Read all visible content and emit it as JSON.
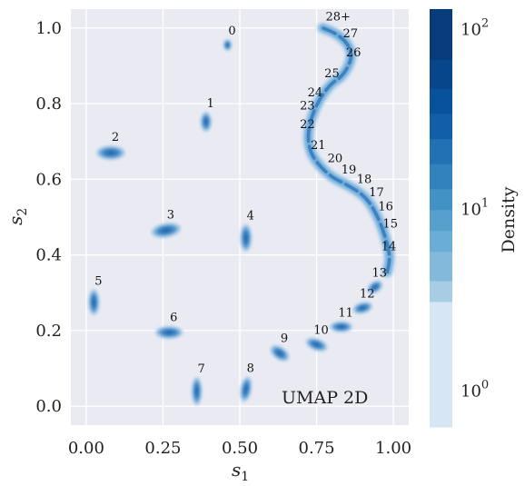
{
  "chart_data": {
    "type": "scatter",
    "annotation": "UMAP 2D",
    "xlabel": "s",
    "xlabel_sub": "1",
    "ylabel": "s",
    "ylabel_sub": "2",
    "xlim": [
      -0.05,
      1.05
    ],
    "ylim": [
      -0.05,
      1.05
    ],
    "xticks": [
      0.0,
      0.25,
      0.5,
      0.75,
      1.0
    ],
    "xtick_labels": [
      "0.00",
      "0.25",
      "0.50",
      "0.75",
      "1.00"
    ],
    "yticks": [
      0.0,
      0.2,
      0.4,
      0.6,
      0.8,
      1.0
    ],
    "ytick_labels": [
      "0.0",
      "0.2",
      "0.4",
      "0.6",
      "0.8",
      "1.0"
    ],
    "grid": true,
    "colorbar": {
      "label": "Density",
      "scale": "log",
      "tick_labels": [
        {
          "base": "10",
          "exp": "0",
          "value": 1
        },
        {
          "base": "10",
          "exp": "1",
          "value": 10
        },
        {
          "base": "10",
          "exp": "2",
          "value": 100
        }
      ],
      "colors": [
        "#d6e6f4",
        "#a6cde3",
        "#83badb",
        "#6aaed6",
        "#56a0ce",
        "#4292c6",
        "#3282be",
        "#2271b5",
        "#135fa7",
        "#08519c",
        "#08468b",
        "#083b7a"
      ]
    },
    "clusters": [
      {
        "label": "0",
        "x": 0.46,
        "y": 0.955,
        "rx": 0.012,
        "ry": 0.013,
        "angle": 0
      },
      {
        "label": "1",
        "x": 0.39,
        "y": 0.752,
        "rx": 0.016,
        "ry": 0.024,
        "angle": 0
      },
      {
        "label": "2",
        "x": 0.08,
        "y": 0.67,
        "rx": 0.044,
        "ry": 0.017,
        "angle": 0
      },
      {
        "label": "3",
        "x": 0.26,
        "y": 0.465,
        "rx": 0.046,
        "ry": 0.017,
        "angle": 10
      },
      {
        "label": "4",
        "x": 0.52,
        "y": 0.445,
        "rx": 0.017,
        "ry": 0.034,
        "angle": 0
      },
      {
        "label": "5",
        "x": 0.025,
        "y": 0.275,
        "rx": 0.016,
        "ry": 0.032,
        "angle": 0
      },
      {
        "label": "6",
        "x": 0.27,
        "y": 0.195,
        "rx": 0.042,
        "ry": 0.015,
        "angle": 0
      },
      {
        "label": "7",
        "x": 0.36,
        "y": 0.04,
        "rx": 0.015,
        "ry": 0.035,
        "angle": 0
      },
      {
        "label": "8",
        "x": 0.52,
        "y": 0.045,
        "rx": 0.016,
        "ry": 0.031,
        "angle": -10
      },
      {
        "label": "9",
        "x": 0.63,
        "y": 0.14,
        "rx": 0.032,
        "ry": 0.015,
        "angle": -35
      },
      {
        "label": "10",
        "x": 0.75,
        "y": 0.163,
        "rx": 0.034,
        "ry": 0.014,
        "angle": -20
      },
      {
        "label": "11",
        "x": 0.83,
        "y": 0.21,
        "rx": 0.034,
        "ry": 0.013,
        "angle": 0
      },
      {
        "label": "12",
        "x": 0.9,
        "y": 0.26,
        "rx": 0.03,
        "ry": 0.013,
        "angle": 15
      },
      {
        "label": "13",
        "x": 0.94,
        "y": 0.315,
        "rx": 0.025,
        "ry": 0.013,
        "angle": 35
      }
    ],
    "curve": {
      "points": [
        [
          0.98,
          0.355
        ],
        [
          0.99,
          0.395
        ],
        [
          0.975,
          0.445
        ],
        [
          0.955,
          0.49
        ],
        [
          0.93,
          0.53
        ],
        [
          0.9,
          0.56
        ],
        [
          0.85,
          0.585
        ],
        [
          0.8,
          0.605
        ],
        [
          0.76,
          0.635
        ],
        [
          0.73,
          0.67
        ],
        [
          0.72,
          0.715
        ],
        [
          0.735,
          0.77
        ],
        [
          0.765,
          0.82
        ],
        [
          0.8,
          0.855
        ],
        [
          0.83,
          0.87
        ],
        [
          0.855,
          0.9
        ],
        [
          0.865,
          0.93
        ],
        [
          0.85,
          0.96
        ],
        [
          0.815,
          0.985
        ],
        [
          0.77,
          1.0
        ]
      ]
    },
    "curve_labels": [
      {
        "label": "14",
        "x": 0.985,
        "y": 0.412
      },
      {
        "label": "15",
        "x": 0.99,
        "y": 0.472
      },
      {
        "label": "16",
        "x": 0.975,
        "y": 0.518
      },
      {
        "label": "17",
        "x": 0.945,
        "y": 0.555
      },
      {
        "label": "18",
        "x": 0.905,
        "y": 0.59
      },
      {
        "label": "19",
        "x": 0.855,
        "y": 0.615
      },
      {
        "label": "20",
        "x": 0.81,
        "y": 0.645
      },
      {
        "label": "21",
        "x": 0.755,
        "y": 0.68
      },
      {
        "label": "22",
        "x": 0.72,
        "y": 0.735
      },
      {
        "label": "23",
        "x": 0.72,
        "y": 0.785
      },
      {
        "label": "24",
        "x": 0.745,
        "y": 0.82
      },
      {
        "label": "25",
        "x": 0.8,
        "y": 0.87
      },
      {
        "label": "26",
        "x": 0.87,
        "y": 0.925
      },
      {
        "label": "27",
        "x": 0.86,
        "y": 0.975
      },
      {
        "label": "28+",
        "x": 0.82,
        "y": 1.02
      }
    ]
  }
}
